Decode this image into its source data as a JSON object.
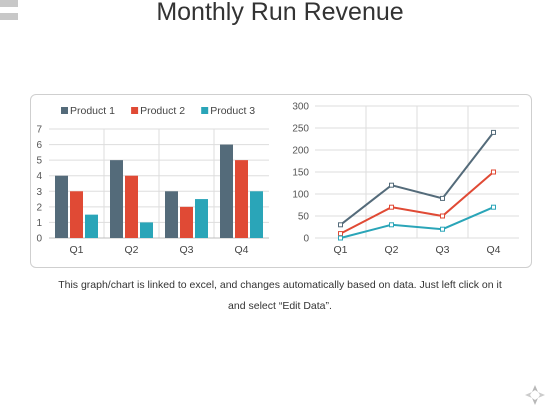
{
  "page": {
    "title": "Monthly Run Revenue"
  },
  "caption": {
    "line1": "This graph/chart is linked to excel, and changes automatically based on data. Just left click on it",
    "line2": "and select “Edit Data”."
  },
  "colors": {
    "Product 1": "#546b7a",
    "Product 2": "#e04a35",
    "Product 3": "#2aa5b8",
    "grid": "#dddddd",
    "panel_border": "#cfcfcf"
  },
  "chart_data": [
    {
      "type": "bar",
      "categories": [
        "Q1",
        "Q2",
        "Q3",
        "Q4"
      ],
      "series": [
        {
          "name": "Product 1",
          "values": [
            4,
            5,
            3,
            6
          ]
        },
        {
          "name": "Product 2",
          "values": [
            3,
            4,
            2,
            5
          ]
        },
        {
          "name": "Product 3",
          "values": [
            1.5,
            1,
            2.5,
            3
          ]
        }
      ],
      "ylim": [
        0,
        7
      ],
      "yticks": [
        0,
        1,
        2,
        3,
        4,
        5,
        6,
        7
      ],
      "legend": "top",
      "grid": true
    },
    {
      "type": "line",
      "categories": [
        "Q1",
        "Q2",
        "Q3",
        "Q4"
      ],
      "series": [
        {
          "name": "Product 1",
          "values": [
            30,
            120,
            90,
            240
          ]
        },
        {
          "name": "Product 2",
          "values": [
            10,
            70,
            50,
            150
          ]
        },
        {
          "name": "Product 3",
          "values": [
            0,
            30,
            20,
            70
          ]
        }
      ],
      "ylim": [
        0,
        300
      ],
      "yticks": [
        0,
        50,
        100,
        150,
        200,
        250,
        300
      ],
      "grid": true
    }
  ]
}
